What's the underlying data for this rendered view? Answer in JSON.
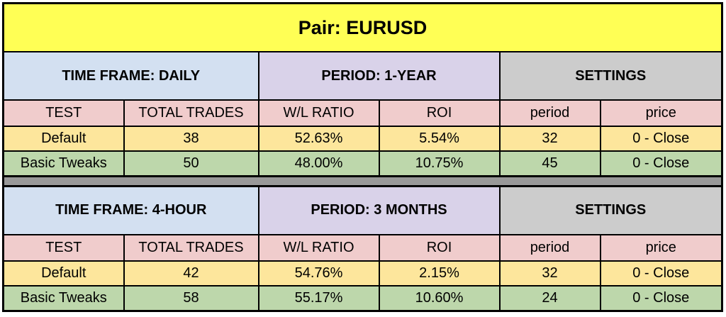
{
  "title": "Pair:  EURUSD",
  "columns": [
    "TEST",
    "TOTAL TRADES",
    "W/L RATIO",
    "ROI",
    "period",
    "price"
  ],
  "colors": {
    "title": "#ffff55",
    "timeframe": "#d3e0f1",
    "period": "#d9d2e9",
    "settings": "#cccccc",
    "header": "#f0cccc",
    "default_row": "#fde69c",
    "tweaks_row": "#bdd7ab",
    "separator": "#999999"
  },
  "sections": [
    {
      "timeframe": "TIME FRAME:  DAILY",
      "period": "PERIOD: 1-YEAR",
      "settings": "SETTINGS",
      "rows": [
        [
          "Default",
          "38",
          "52.63%",
          "5.54%",
          "32",
          "0 - Close"
        ],
        [
          "Basic Tweaks",
          "50",
          "48.00%",
          "10.75%",
          "45",
          "0 - Close"
        ]
      ]
    },
    {
      "timeframe": "TIME FRAME:  4-HOUR",
      "period": "PERIOD: 3 MONTHS",
      "settings": "SETTINGS",
      "rows": [
        [
          "Default",
          "42",
          "54.76%",
          "2.15%",
          "32",
          "0 - Close"
        ],
        [
          "Basic Tweaks",
          "58",
          "55.17%",
          "10.60%",
          "24",
          "0 - Close"
        ]
      ]
    }
  ]
}
